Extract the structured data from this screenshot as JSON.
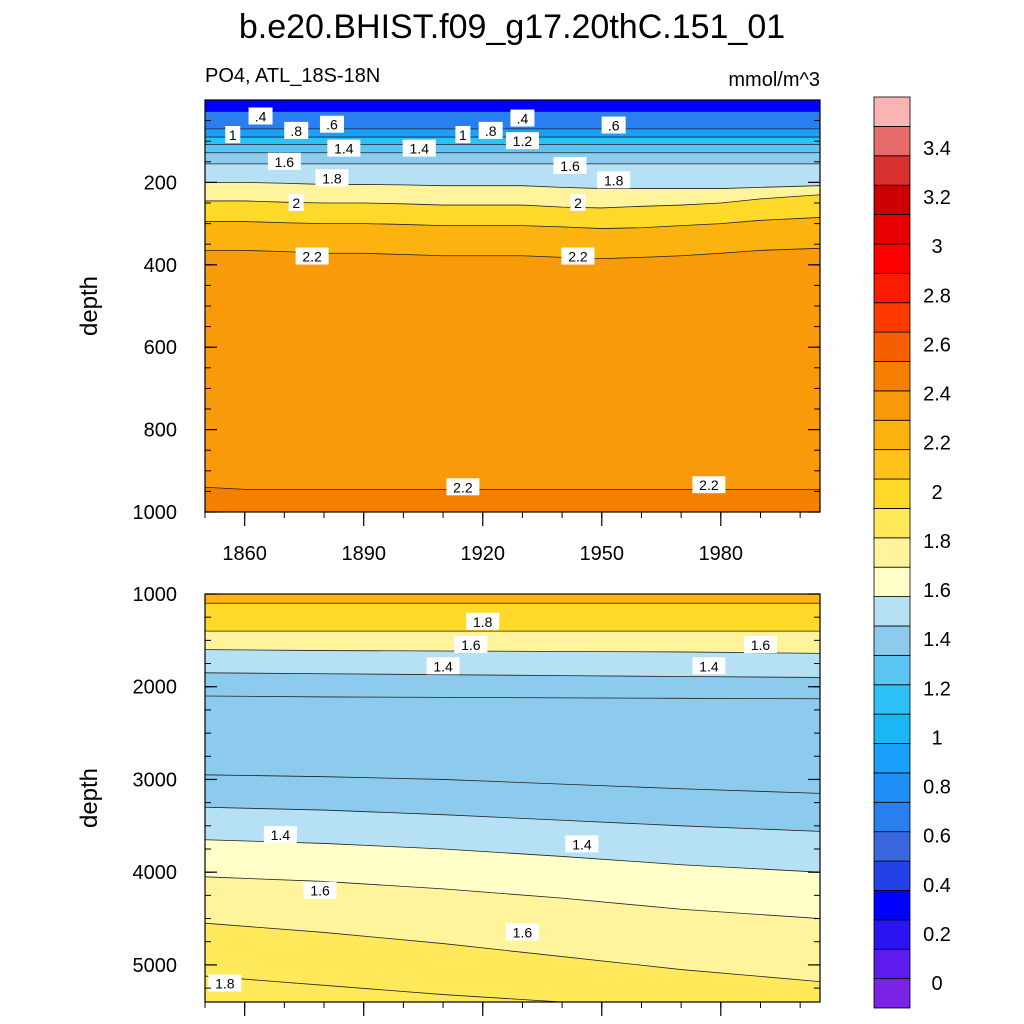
{
  "figure": {
    "title": "b.e20.BHIST.f09_g17.20thC.151_01",
    "left_subtitle": "PO4, ATL_18S-18N",
    "right_subtitle": "mmol/m^3"
  },
  "colorbar": {
    "levels": [
      0,
      0.2,
      0.4,
      0.6,
      0.8,
      1,
      1.2,
      1.4,
      1.6,
      1.8,
      2,
      2.2,
      2.4,
      2.6,
      2.8,
      3,
      3.2,
      3.4
    ],
    "tick_labels": [
      "0",
      "0.2",
      "0.4",
      "0.6",
      "0.8",
      "1",
      "1.2",
      "1.4",
      "1.6",
      "1.8",
      "2",
      "2.2",
      "2.4",
      "2.6",
      "2.8",
      "3",
      "3.2",
      "3.4"
    ],
    "fills": [
      "#7a22e6",
      "#5d1bef",
      "#2b13f2",
      "#0000ff",
      "#2342e6",
      "#3a66e0",
      "#2a7ff0",
      "#1f8ff7",
      "#1aa0fb",
      "#1ab6f5",
      "#2bc1f6",
      "#5cc4f3",
      "#8ccbee",
      "#b6e0f4",
      "#ffffc8",
      "#fff49c",
      "#ffe95a",
      "#ffd92a",
      "#ffc21a",
      "#fcb30f",
      "#f99a0a",
      "#f77f00",
      "#f75e00",
      "#ff3a00",
      "#f91c00",
      "#ff0000",
      "#e80000",
      "#cc0000",
      "#d93030",
      "#e86b6b",
      "#fab4b4"
    ],
    "colors_note": "bottom to top"
  },
  "chart_data": [
    {
      "type": "contour",
      "panel": "upper",
      "xlabel": "",
      "ylabel": "depth",
      "xlim": [
        1850,
        2005
      ],
      "ylim": [
        1000,
        0
      ],
      "x_ticks": [
        1860,
        1890,
        1920,
        1950,
        1980
      ],
      "x_tick_labels": [
        "1860",
        "1890",
        "1920",
        "1950",
        "1980"
      ],
      "y_ticks": [
        200,
        400,
        600,
        800,
        1000
      ],
      "y_tick_labels": [
        "200",
        "400",
        "600",
        "800",
        "1000"
      ],
      "x": [
        1850,
        1860,
        1870,
        1880,
        1890,
        1900,
        1910,
        1920,
        1930,
        1940,
        1950,
        1960,
        1970,
        1980,
        1990,
        2005
      ],
      "contours": [
        {
          "level": 0.4,
          "depths": [
            28,
            28,
            28,
            28,
            28,
            28,
            28,
            28,
            28,
            28,
            28,
            28,
            28,
            28,
            28,
            28
          ]
        },
        {
          "level": 0.6,
          "depths": [
            70,
            70,
            70,
            70,
            70,
            70,
            70,
            70,
            70,
            70,
            70,
            70,
            70,
            70,
            70,
            70
          ]
        },
        {
          "level": 0.8,
          "depths": [
            90,
            90,
            90,
            90,
            90,
            90,
            90,
            90,
            90,
            90,
            90,
            90,
            90,
            90,
            90,
            90
          ]
        },
        {
          "level": 1.0,
          "depths": [
            108,
            108,
            108,
            108,
            108,
            108,
            108,
            108,
            108,
            108,
            108,
            108,
            108,
            108,
            108,
            108
          ]
        },
        {
          "level": 1.2,
          "depths": [
            128,
            128,
            128,
            128,
            128,
            128,
            128,
            128,
            128,
            128,
            128,
            128,
            128,
            128,
            128,
            128
          ]
        },
        {
          "level": 1.4,
          "depths": [
            155,
            155,
            155,
            155,
            155,
            155,
            155,
            155,
            155,
            155,
            155,
            155,
            155,
            155,
            155,
            155
          ]
        },
        {
          "level": 1.6,
          "depths": [
            200,
            200,
            202,
            205,
            205,
            206,
            208,
            208,
            208,
            212,
            215,
            215,
            215,
            215,
            212,
            208
          ]
        },
        {
          "level": 1.8,
          "depths": [
            245,
            245,
            248,
            250,
            250,
            252,
            255,
            255,
            255,
            260,
            262,
            258,
            255,
            250,
            240,
            230
          ]
        },
        {
          "level": 2.0,
          "depths": [
            295,
            295,
            298,
            300,
            300,
            302,
            305,
            305,
            305,
            308,
            312,
            310,
            305,
            300,
            292,
            285
          ]
        },
        {
          "level": 2.2,
          "depths": [
            365,
            365,
            368,
            372,
            372,
            375,
            378,
            378,
            378,
            382,
            385,
            382,
            378,
            372,
            365,
            360
          ]
        },
        {
          "level": 2.2,
          "depths": [
            940,
            945,
            945,
            945,
            945,
            945,
            945,
            945,
            945,
            945,
            945,
            945,
            945,
            945,
            945,
            945
          ]
        }
      ],
      "contour_labels": [
        {
          "text": ".4",
          "x": 1864,
          "y": 40
        },
        {
          "text": "1",
          "x": 1857,
          "y": 85
        },
        {
          "text": ".8",
          "x": 1873,
          "y": 75
        },
        {
          "text": ".6",
          "x": 1882,
          "y": 60
        },
        {
          "text": ".4",
          "x": 1930,
          "y": 45
        },
        {
          "text": "1",
          "x": 1915,
          "y": 85
        },
        {
          "text": ".8",
          "x": 1922,
          "y": 75
        },
        {
          "text": ".6",
          "x": 1953,
          "y": 62
        },
        {
          "text": "1.4",
          "x": 1885,
          "y": 118
        },
        {
          "text": "1.4",
          "x": 1904,
          "y": 118
        },
        {
          "text": "1.2",
          "x": 1930,
          "y": 100
        },
        {
          "text": "1.6",
          "x": 1870,
          "y": 150
        },
        {
          "text": "1.6",
          "x": 1942,
          "y": 160
        },
        {
          "text": "1.8",
          "x": 1882,
          "y": 190
        },
        {
          "text": "1.8",
          "x": 1953,
          "y": 195
        },
        {
          "text": "2",
          "x": 1873,
          "y": 250
        },
        {
          "text": "2",
          "x": 1944,
          "y": 250
        },
        {
          "text": "2.2",
          "x": 1877,
          "y": 380
        },
        {
          "text": "2.2",
          "x": 1944,
          "y": 380
        },
        {
          "text": "2.2",
          "x": 1915,
          "y": 940
        },
        {
          "text": "2.2",
          "x": 1977,
          "y": 935
        }
      ]
    },
    {
      "type": "contour",
      "panel": "lower",
      "xlabel": "",
      "ylabel": "depth",
      "xlim": [
        1850,
        2005
      ],
      "ylim": [
        5400,
        1000
      ],
      "y_ticks": [
        1000,
        2000,
        3000,
        4000,
        5000
      ],
      "y_tick_labels": [
        "1000",
        "2000",
        "3000",
        "4000",
        "5000"
      ],
      "x": [
        1850,
        1880,
        1910,
        1940,
        1970,
        2005
      ],
      "contours": [
        {
          "level": 2.0,
          "depths": [
            1100,
            1100,
            1100,
            1100,
            1100,
            1100
          ]
        },
        {
          "level": 1.8,
          "depths": [
            1400,
            1400,
            1400,
            1400,
            1400,
            1400
          ]
        },
        {
          "level": 1.6,
          "depths": [
            1600,
            1610,
            1615,
            1620,
            1625,
            1640
          ]
        },
        {
          "level": 1.4,
          "depths": [
            1850,
            1860,
            1870,
            1880,
            1890,
            1900
          ]
        },
        {
          "level": 1.2,
          "depths": [
            2100,
            2110,
            2115,
            2120,
            2125,
            2130
          ]
        },
        {
          "level": 1.2,
          "depths": [
            2950,
            2970,
            3000,
            3050,
            3100,
            3150
          ]
        },
        {
          "level": 1.4,
          "depths": [
            3300,
            3330,
            3380,
            3440,
            3500,
            3560
          ]
        },
        {
          "level": 1.4,
          "depths": [
            3650,
            3690,
            3750,
            3830,
            3920,
            4000
          ]
        },
        {
          "level": 1.6,
          "depths": [
            4050,
            4100,
            4180,
            4280,
            4400,
            4500
          ]
        },
        {
          "level": 1.6,
          "depths": [
            4550,
            4650,
            4770,
            4910,
            5050,
            5180
          ]
        },
        {
          "level": 1.8,
          "depths": [
            5120,
            5220,
            5320,
            5400,
            5400,
            5400
          ]
        }
      ],
      "contour_labels": [
        {
          "text": "1.8",
          "x": 1920,
          "y": 1300
        },
        {
          "text": "1.6",
          "x": 1917,
          "y": 1550
        },
        {
          "text": "1.6",
          "x": 1990,
          "y": 1550
        },
        {
          "text": "1.4",
          "x": 1910,
          "y": 1780
        },
        {
          "text": "1.4",
          "x": 1977,
          "y": 1780
        },
        {
          "text": "1.4",
          "x": 1869,
          "y": 3600
        },
        {
          "text": "1.4",
          "x": 1945,
          "y": 3700
        },
        {
          "text": "1.6",
          "x": 1879,
          "y": 4200
        },
        {
          "text": "1.6",
          "x": 1930,
          "y": 4650
        },
        {
          "text": "1.8",
          "x": 1855,
          "y": 5200
        }
      ]
    }
  ]
}
